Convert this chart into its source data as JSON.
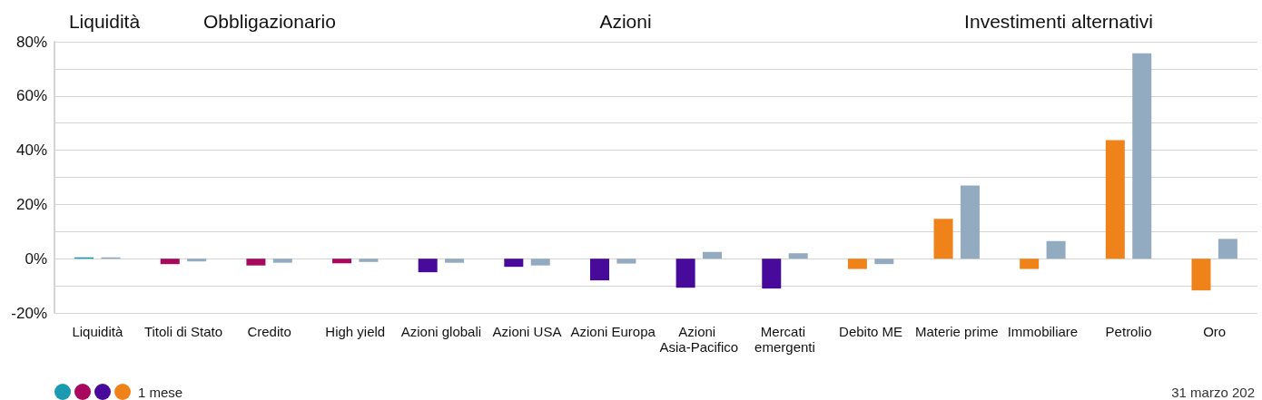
{
  "chart_data": {
    "type": "bar",
    "categories": [
      "Liquidità",
      "Titoli di Stato",
      "Credito",
      "High yield",
      "Azioni globali",
      "Azioni USA",
      "Azioni Europa",
      "Azioni Asia-Pacifico",
      "Mercati emergenti",
      "Debito ME",
      "Materie prime",
      "Immobiliare",
      "Petrolio",
      "Oro"
    ],
    "series": [
      {
        "name": "1 mese",
        "colors": [
          "#1a9bb0",
          "#a8095e",
          "#a8095e",
          "#a8095e",
          "#470a9a",
          "#470a9a",
          "#470a9a",
          "#470a9a",
          "#470a9a",
          "#f0821a",
          "#f0821a",
          "#f0821a",
          "#f0821a",
          "#f0821a"
        ],
        "values": [
          0.5,
          -2,
          -2.5,
          -1.7,
          -5,
          -3,
          -8,
          -10.7,
          -11,
          -3.8,
          14.7,
          -3.8,
          43.7,
          -11.7
        ]
      },
      {
        "color": "#93abc0",
        "values": [
          0.5,
          -1,
          -1.5,
          -1.2,
          -1.5,
          -2.5,
          -1.8,
          2.5,
          2,
          -2,
          27,
          6.5,
          75.7,
          7.3
        ]
      }
    ],
    "ylim": [
      -20,
      80
    ],
    "yticks": [
      {
        "value": -20,
        "label": "-20%"
      },
      {
        "value": -10,
        "label": null
      },
      {
        "value": 0,
        "label": "0%"
      },
      {
        "value": 10,
        "label": null
      },
      {
        "value": 20,
        "label": "20%"
      },
      {
        "value": 30,
        "label": null
      },
      {
        "value": 40,
        "label": "40%"
      },
      {
        "value": 50,
        "label": null
      },
      {
        "value": 60,
        "label": "60%"
      },
      {
        "value": 70,
        "label": null
      },
      {
        "value": 80,
        "label": "80%"
      }
    ],
    "grid": "y",
    "legend": "bottom left",
    "annotations": [
      "Liquidità",
      "Obbligazionario",
      "Azioni",
      "Investimenti alternativi",
      "31 marzo 202"
    ]
  }
}
